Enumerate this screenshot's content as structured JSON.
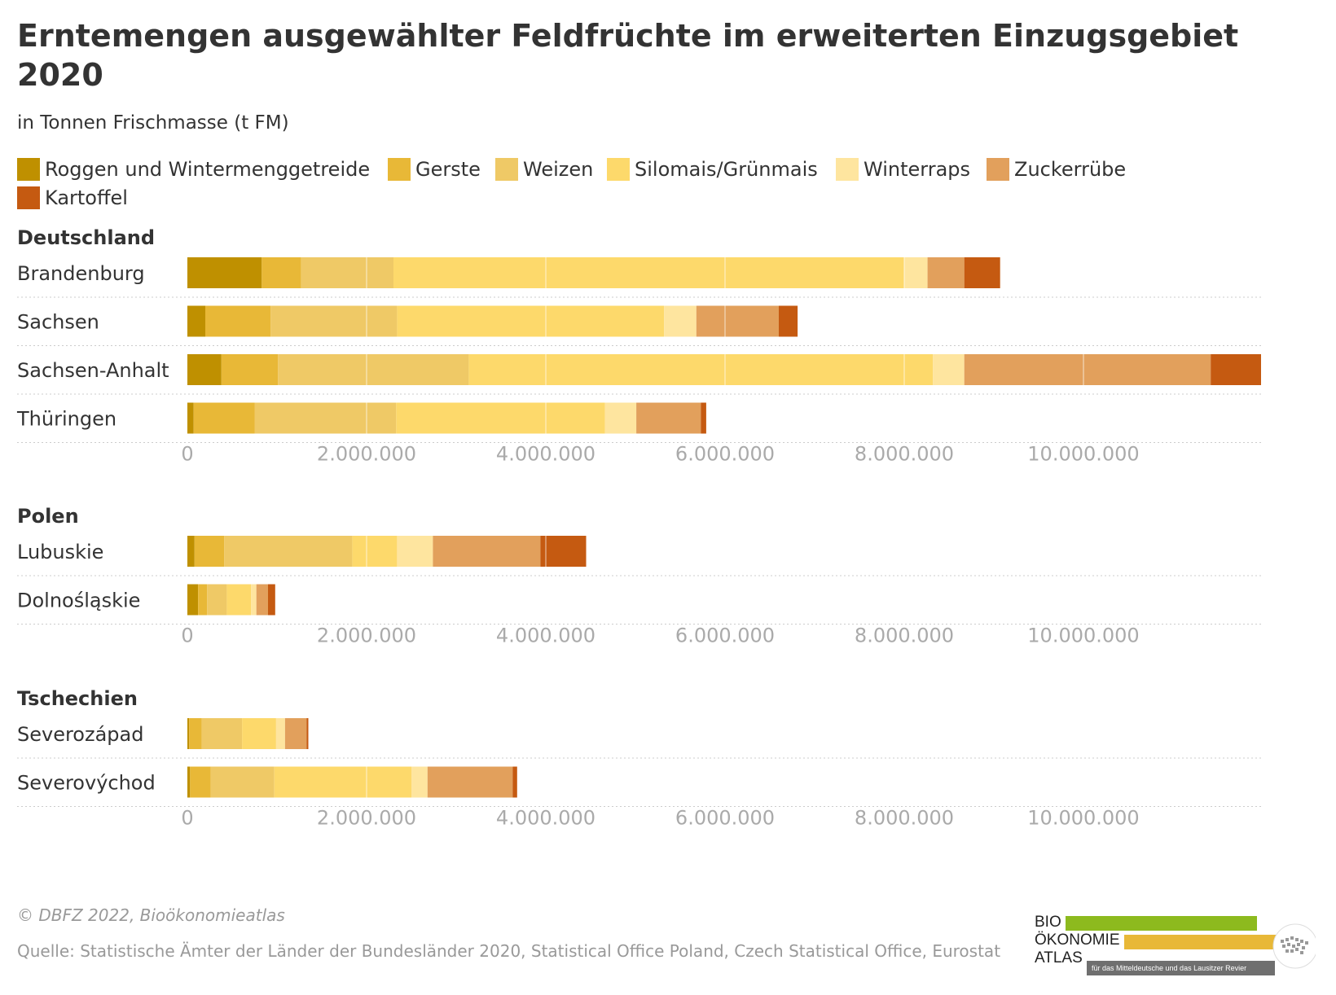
{
  "title": "Erntemengen ausgewählter Feldfrüchte im erweiterten Einzugsgebiet 2020",
  "subtitle": "in Tonnen Frischmasse (t FM)",
  "footer": {
    "copyright": "© DBFZ 2022, Bioökonomieatlas",
    "source": "Quelle: Statistische Ämter der Länder der Bundesländer 2020, Statistical Office Poland, Czech Statistical Office, Eurostat"
  },
  "logo": {
    "line1": "BIO",
    "line2": "ÖKONOMIE",
    "line3": "ATLAS",
    "tagline": "für das Mitteldeutsche und das Lausitzer Revier",
    "colors": [
      "#8dba1e",
      "#e8b837",
      "#6f6f6f"
    ]
  },
  "chart_data": {
    "type": "bar",
    "orientation": "horizontal",
    "stacked": true,
    "title": "Erntemengen ausgewählter Feldfrüchte im erweiterten Einzugsgebiet 2020",
    "subtitle": "in Tonnen Frischmasse (t FM)",
    "xlim": [
      0,
      12000000
    ],
    "xticks": [
      0,
      2000000,
      4000000,
      6000000,
      8000000,
      10000000
    ],
    "xtick_labels": [
      "0",
      "2.000.000",
      "4.000.000",
      "6.000.000",
      "8.000.000",
      "10.000.000"
    ],
    "legend_position": "top",
    "series": [
      {
        "name": "Roggen und Wintermenggetreide",
        "color": "#bf9000"
      },
      {
        "name": "Gerste",
        "color": "#e8b837"
      },
      {
        "name": "Weizen",
        "color": "#efc966"
      },
      {
        "name": "Silomais/Grünmais",
        "color": "#fdd96b"
      },
      {
        "name": "Winterraps",
        "color": "#fee59f"
      },
      {
        "name": "Zuckerrübe",
        "color": "#e2a05c"
      },
      {
        "name": "Kartoffel",
        "color": "#c55a11"
      }
    ],
    "groups": [
      {
        "name": "Deutschland",
        "rows": [
          {
            "label": "Brandenburg",
            "values": [
              830000,
              440000,
              1030000,
              5700000,
              260000,
              410000,
              400000
            ]
          },
          {
            "label": "Sachsen",
            "values": [
              200000,
              730000,
              1410000,
              2980000,
              360000,
              920000,
              210000
            ]
          },
          {
            "label": "Sachsen-Anhalt",
            "values": [
              380000,
              630000,
              2130000,
              5180000,
              350000,
              2750000,
              580000
            ]
          },
          {
            "label": "Thüringen",
            "values": [
              70000,
              680000,
              1580000,
              2330000,
              350000,
              720000,
              60000
            ]
          }
        ]
      },
      {
        "name": "Polen",
        "rows": [
          {
            "label": "Lubuskie",
            "values": [
              80000,
              330000,
              1430000,
              500000,
              400000,
              1200000,
              510000
            ]
          },
          {
            "label": "Dolnośląskie",
            "values": [
              120000,
              100000,
              220000,
              270000,
              60000,
              130000,
              80000
            ]
          }
        ]
      },
      {
        "name": "Tschechien",
        "rows": [
          {
            "label": "Severozápad",
            "values": [
              20000,
              140000,
              450000,
              380000,
              100000,
              240000,
              20000
            ]
          },
          {
            "label": "Severovýchod",
            "values": [
              30000,
              230000,
              710000,
              1530000,
              180000,
              950000,
              50000
            ]
          }
        ]
      }
    ]
  }
}
